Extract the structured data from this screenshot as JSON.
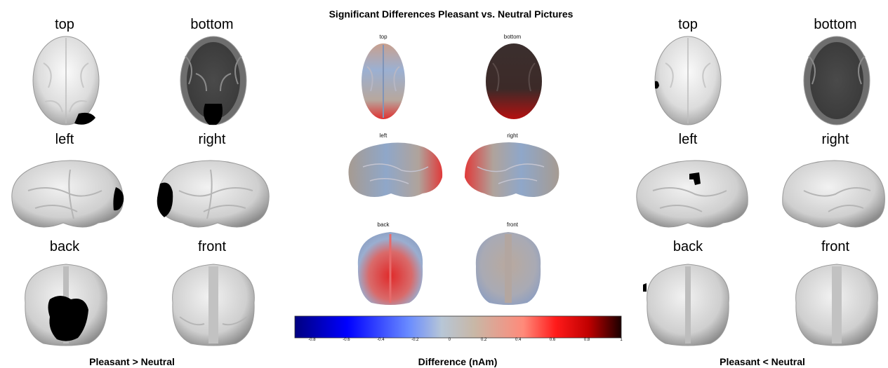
{
  "title": "Significant Differences Pleasant vs. Neutral Pictures",
  "views": {
    "top": "top",
    "bottom": "bottom",
    "left": "left",
    "right": "right",
    "back": "back",
    "front": "front"
  },
  "captions": {
    "left_panel": "Pleasant > Neutral",
    "center_panel": "Difference (nAm)",
    "right_panel": "Pleasant < Neutral"
  },
  "colorbar": {
    "ticks": [
      "-0.8",
      "-0.6",
      "-0.4",
      "-0.2",
      "0",
      "0.2",
      "0.4",
      "0.6",
      "0.8",
      "1"
    ],
    "min": -0.9,
    "max": 1,
    "colors": [
      "#000080",
      "#0000ff",
      "#6a8cff",
      "#b7c6d6",
      "#c8b7a6",
      "#ff8a7a",
      "#ff1a1a",
      "#c00000",
      "#1a0000"
    ]
  }
}
